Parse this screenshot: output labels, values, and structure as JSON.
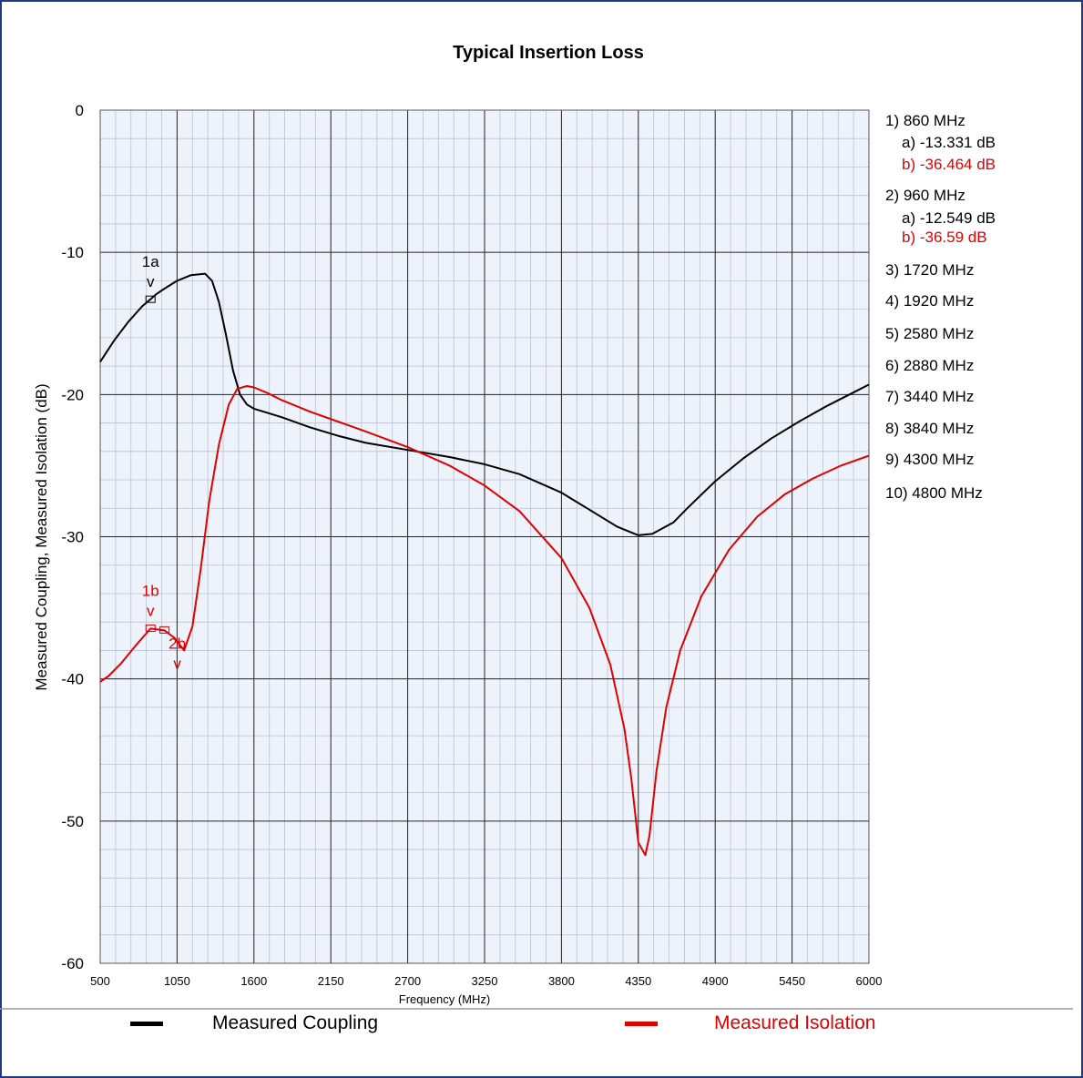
{
  "chart_data": {
    "type": "line",
    "title": "Typical Insertion Loss",
    "xlabel": "Frequency (MHz)",
    "ylabel": "Measured Coupling, Measured Isolation (dB)",
    "xlim": [
      500,
      6000
    ],
    "ylim": [
      -60,
      0
    ],
    "x_ticks": [
      "500",
      "1050",
      "1600",
      "2150",
      "2700",
      "3250",
      "3800",
      "4350",
      "4900",
      "5450",
      "6000"
    ],
    "y_ticks": [
      "0",
      "-10",
      "-20",
      "-30",
      "-40",
      "-50",
      "-60"
    ],
    "grid": true,
    "legend_placement": "bottom",
    "series": [
      {
        "name": "Measured Coupling",
        "color": "#000000",
        "x": [
          500,
          600,
          700,
          800,
          860,
          900,
          960,
          1050,
          1150,
          1250,
          1300,
          1350,
          1400,
          1450,
          1500,
          1550,
          1600,
          1700,
          1800,
          2000,
          2200,
          2400,
          2700,
          3000,
          3250,
          3500,
          3800,
          4000,
          4200,
          4350,
          4450,
          4600,
          4700,
          4900,
          5100,
          5300,
          5500,
          5700,
          5900,
          6000
        ],
        "y": [
          -17.7,
          -16.2,
          -14.9,
          -13.8,
          -13.3,
          -12.95,
          -12.55,
          -12.0,
          -11.6,
          -11.5,
          -12.0,
          -13.5,
          -15.8,
          -18.3,
          -20.0,
          -20.7,
          -21.0,
          -21.3,
          -21.6,
          -22.3,
          -22.9,
          -23.4,
          -23.9,
          -24.4,
          -24.9,
          -25.6,
          -26.9,
          -28.1,
          -29.3,
          -29.9,
          -29.8,
          -29.0,
          -28.0,
          -26.1,
          -24.5,
          -23.1,
          -21.9,
          -20.8,
          -19.8,
          -19.3
        ]
      },
      {
        "name": "Measured Isolation",
        "color": "#e00000",
        "x": [
          500,
          560,
          650,
          750,
          860,
          960,
          1030,
          1100,
          1160,
          1220,
          1280,
          1350,
          1420,
          1480,
          1550,
          1600,
          1700,
          1800,
          2000,
          2200,
          2400,
          2700,
          3000,
          3250,
          3500,
          3800,
          4000,
          4150,
          4250,
          4300,
          4350,
          4400,
          4430,
          4480,
          4550,
          4650,
          4800,
          5000,
          5200,
          5400,
          5600,
          5800,
          6000
        ],
        "y": [
          -40.2,
          -39.8,
          -38.9,
          -37.7,
          -36.46,
          -36.59,
          -37.1,
          -38.0,
          -36.3,
          -32.2,
          -27.5,
          -23.5,
          -20.7,
          -19.6,
          -19.4,
          -19.5,
          -19.9,
          -20.4,
          -21.2,
          -21.9,
          -22.6,
          -23.7,
          -25.0,
          -26.4,
          -28.2,
          -31.5,
          -35.0,
          -39.0,
          -43.5,
          -47.0,
          -51.5,
          -52.4,
          -51.0,
          -46.5,
          -42.0,
          -38.0,
          -34.2,
          -30.9,
          -28.6,
          -27.0,
          -25.9,
          -25.0,
          -24.3
        ]
      }
    ],
    "markers": [
      {
        "label": "1a",
        "arrow": "v",
        "x": 860,
        "y": -13.331,
        "color": "#000000"
      },
      {
        "label": "1b",
        "arrow": "v",
        "x": 860,
        "y": -36.464,
        "color": "#e00000"
      },
      {
        "label": "2b",
        "arrow": "v",
        "x": 960,
        "y": -36.59,
        "color": "#e00000"
      }
    ],
    "marker_table": [
      {
        "text": "1) 860 MHz",
        "color": "#000000",
        "indent": false
      },
      {
        "text": "a) -13.331 dB",
        "color": "#000000",
        "indent": true
      },
      {
        "text": "b) -36.464 dB",
        "color": "#e00000",
        "indent": true
      },
      {
        "text": "2) 960 MHz",
        "color": "#000000",
        "indent": false
      },
      {
        "text": "a) -12.549 dB",
        "color": "#000000",
        "indent": true
      },
      {
        "text": "b) -36.59 dB",
        "color": "#e00000",
        "indent": true
      },
      {
        "text": "3) 1720 MHz",
        "color": "#000000",
        "indent": false
      },
      {
        "text": "4) 1920 MHz",
        "color": "#000000",
        "indent": false
      },
      {
        "text": "5) 2580 MHz",
        "color": "#000000",
        "indent": false
      },
      {
        "text": "6) 2880 MHz",
        "color": "#000000",
        "indent": false
      },
      {
        "text": "7) 3440 MHz",
        "color": "#000000",
        "indent": false
      },
      {
        "text": "8) 3840 MHz",
        "color": "#000000",
        "indent": false
      },
      {
        "text": "9) 4300 MHz",
        "color": "#000000",
        "indent": false
      },
      {
        "text": "10) 4800 MHz",
        "color": "#000000",
        "indent": false
      }
    ]
  },
  "legend": {
    "items": [
      {
        "label": "Measured Coupling",
        "color": "#000000"
      },
      {
        "label": "Measured Isolation",
        "color": "#e00000"
      }
    ]
  }
}
